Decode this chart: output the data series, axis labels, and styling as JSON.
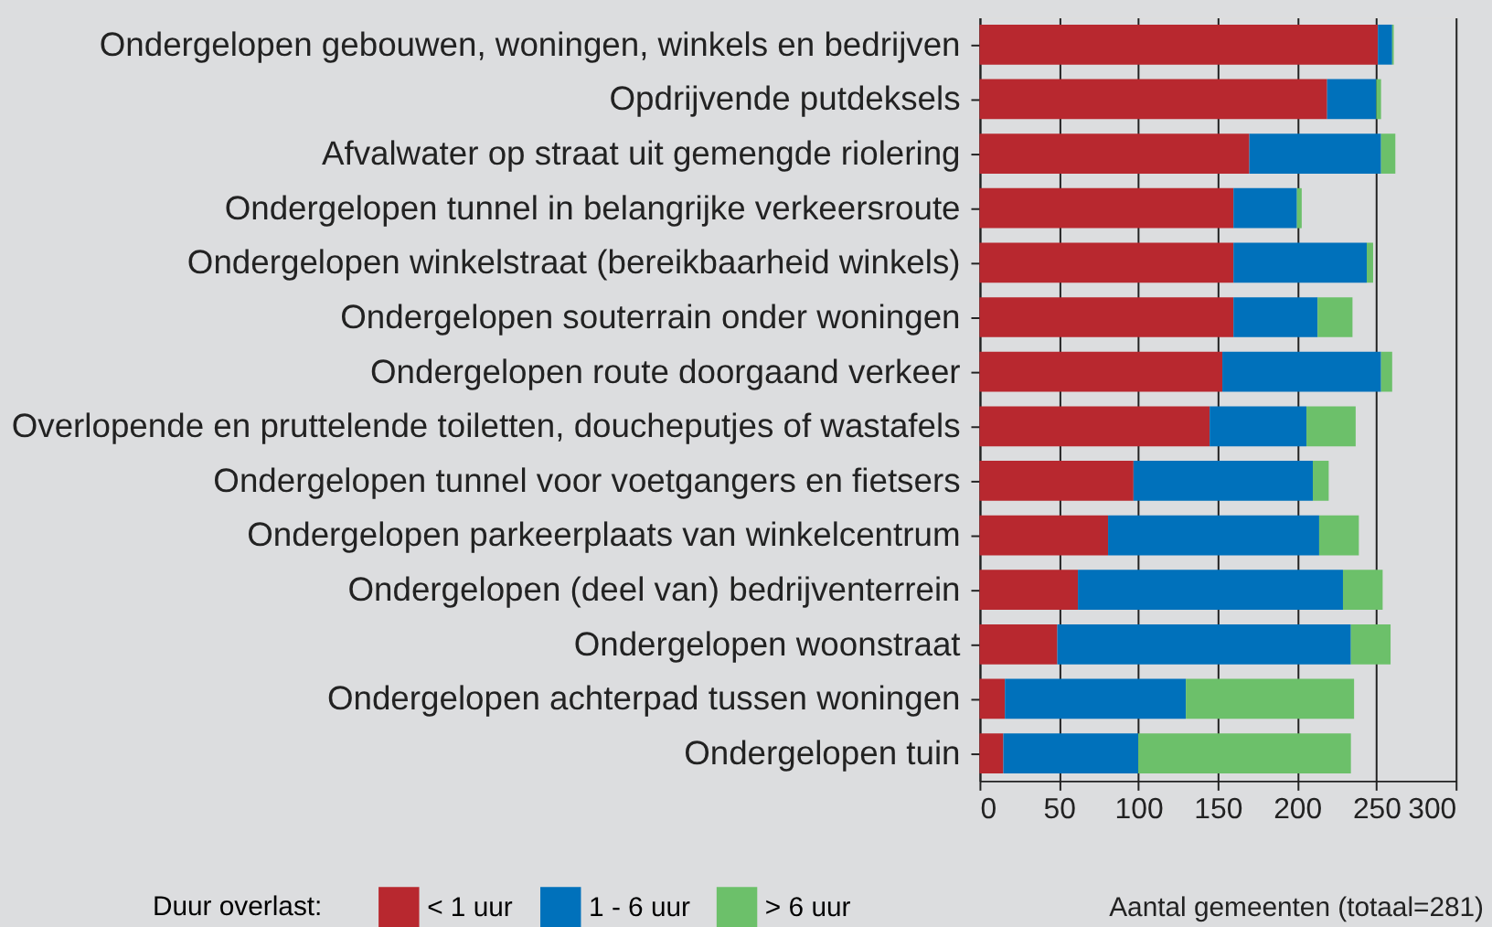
{
  "chart_data": {
    "type": "bar",
    "orientation": "horizontal",
    "stacked": true,
    "categories": [
      "Ondergelopen gebouwen, woningen, winkels en bedrijven",
      "Opdrijvende putdeksels",
      "Afvalwater op straat uit gemengde riolering",
      "Ondergelopen tunnel in belangrijke verkeersroute",
      "Ondergelopen winkelstraat (bereikbaarheid winkels)",
      "Ondergelopen souterrain onder woningen",
      "Ondergelopen route doorgaand verkeer",
      "Overlopende en pruttelende toiletten, doucheputjes of wastafels",
      "Ondergelopen tunnel voor voetgangers en fietsers",
      "Ondergelopen parkeerplaats van winkelcentrum",
      "Ondergelopen (deel van) bedrijventerrein",
      "Ondergelopen woonstraat",
      "Ondergelopen achterpad tussen woningen",
      "Ondergelopen tuin"
    ],
    "series": [
      {
        "name": "< 1 uur",
        "color": "#b8282f",
        "values": [
          251,
          219,
          170,
          160,
          160,
          160,
          153,
          145,
          97,
          81,
          62,
          49,
          16,
          15
        ]
      },
      {
        "name": "1 - 6 uur",
        "color": "#0071bb",
        "values": [
          9,
          31,
          83,
          40,
          84,
          53,
          100,
          61,
          113,
          133,
          167,
          185,
          114,
          85
        ]
      },
      {
        "name": "> 6 uur",
        "color": "#6cc06a",
        "values": [
          1,
          3,
          9,
          3,
          4,
          22,
          7,
          31,
          10,
          25,
          25,
          25,
          106,
          134
        ]
      }
    ],
    "xlabel": "Aantal gemeenten (totaal=281)",
    "legend_title": "Duur overlast:",
    "xlim": [
      0,
      300
    ],
    "xticks": [
      0,
      50,
      100,
      150,
      200,
      250,
      300
    ],
    "grid": "x",
    "legend": "bottom"
  }
}
